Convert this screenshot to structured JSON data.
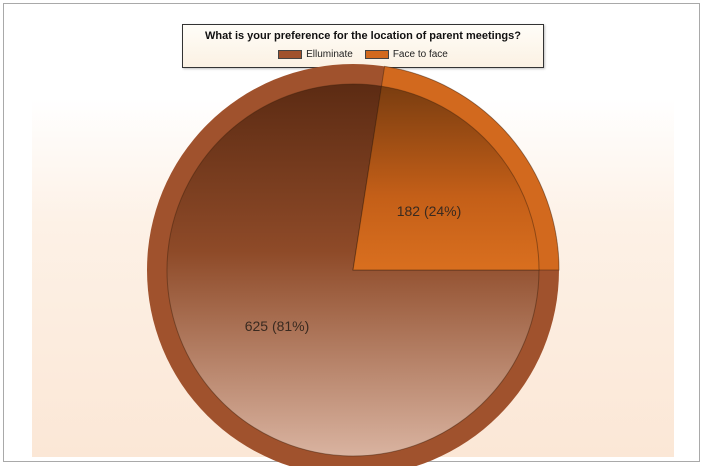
{
  "chart_data": {
    "type": "pie",
    "title": "What is your preference for the location of parent meetings?",
    "categories": [
      "Elluminate",
      "Face to face"
    ],
    "values": [
      625,
      182
    ],
    "value_labels": [
      "625 (81%)",
      "182 (24%)"
    ],
    "colors": [
      "#a0522d",
      "#d2691e"
    ],
    "legend": "top-center"
  }
}
